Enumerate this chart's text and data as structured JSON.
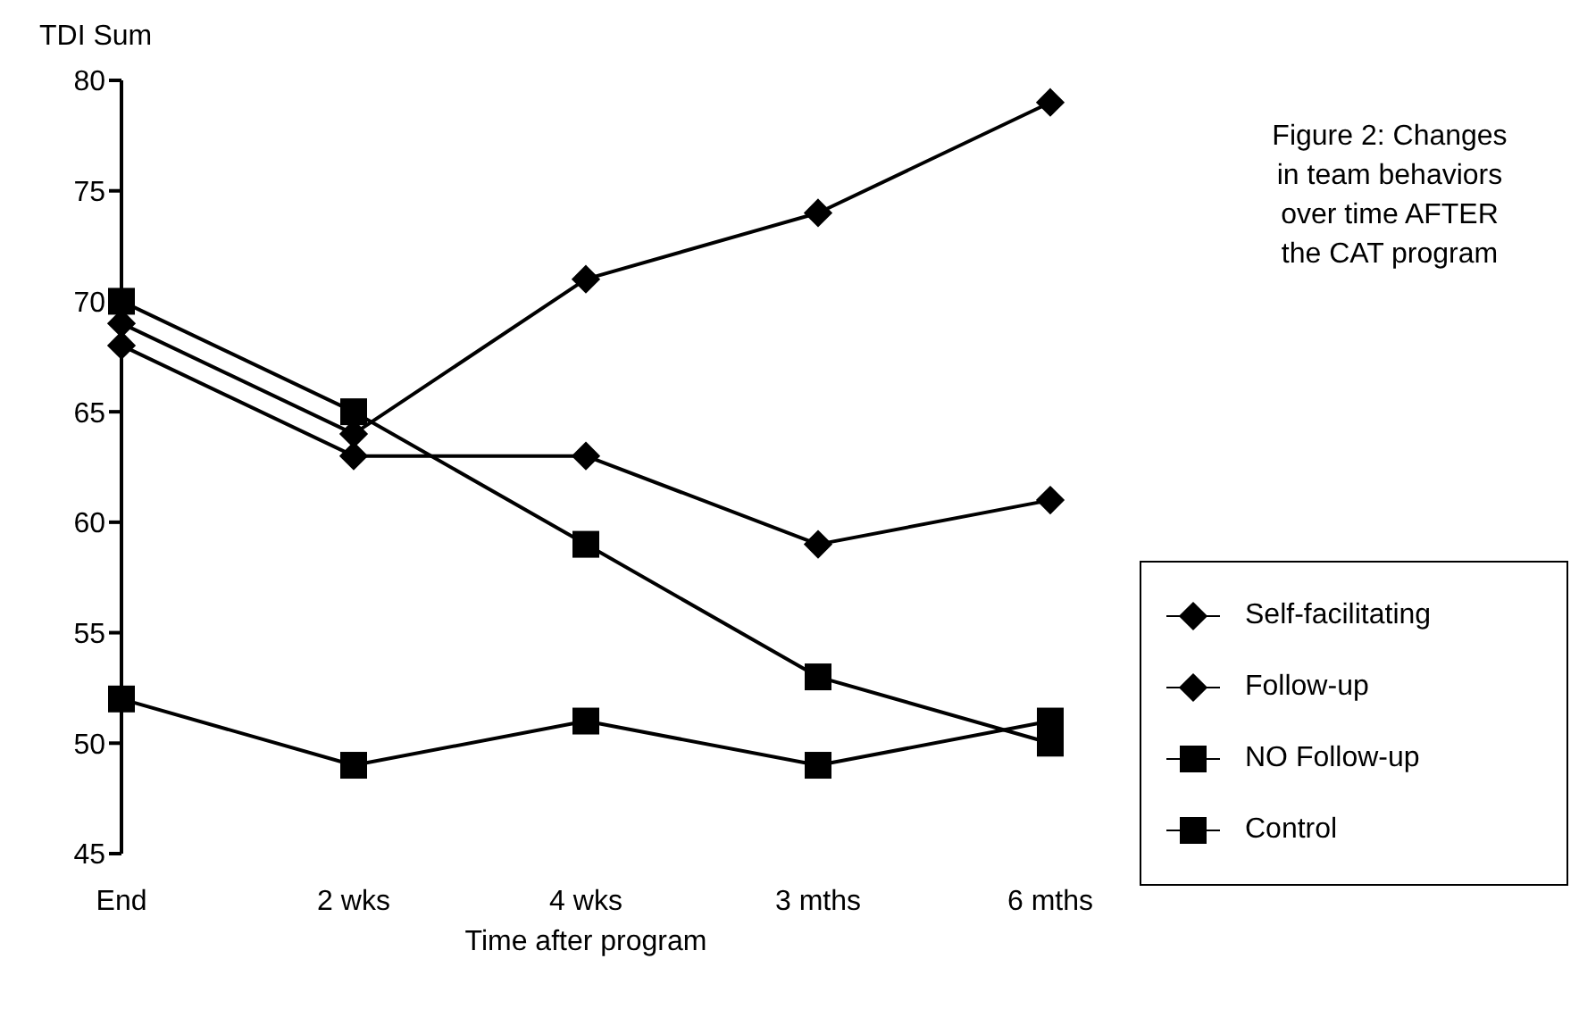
{
  "chart_data": {
    "type": "line",
    "ylabel": "TDI Sum",
    "xlabel": "Time after program",
    "annotations": [
      "Figure 2: Changes in team behaviors over time AFTER the CAT program"
    ],
    "categories": [
      "End",
      "2 wks",
      "4 wks",
      "3 mths",
      "6 mths"
    ],
    "ylim": [
      45,
      80
    ],
    "yticks": [
      45,
      50,
      55,
      60,
      65,
      70,
      75,
      80
    ],
    "grid": false,
    "legend": "right",
    "line_style": "solid",
    "series": [
      {
        "name": "Self-facilitating",
        "color": "#000000",
        "marker": "diamond",
        "values": [
          69,
          64,
          71,
          74,
          79
        ]
      },
      {
        "name": "Follow-up",
        "color": "#000000",
        "marker": "diamond",
        "values": [
          68,
          63,
          63,
          59,
          61
        ]
      },
      {
        "name": "NO Follow-up",
        "color": "#000000",
        "marker": "square",
        "values": [
          70,
          65,
          59,
          53,
          50
        ]
      },
      {
        "name": "Control",
        "color": "#000000",
        "marker": "square",
        "values": [
          52,
          49,
          51,
          49,
          51
        ]
      }
    ]
  }
}
